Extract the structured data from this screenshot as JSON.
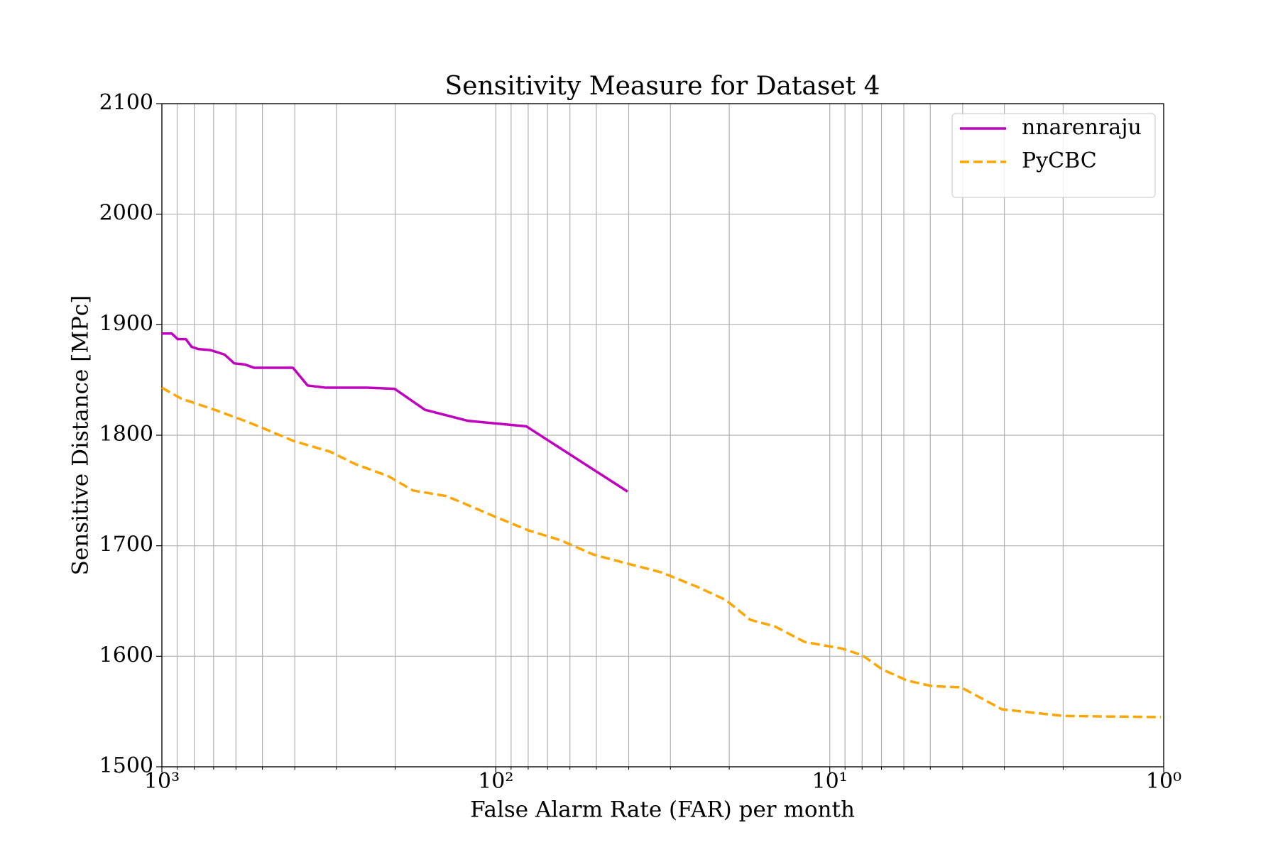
{
  "chart_data": {
    "type": "line",
    "title": "Sensitivity Measure for Dataset 4",
    "xlabel": "False Alarm Rate (FAR) per month",
    "ylabel": "Sensitive Distance [MPc]",
    "xscale": "log",
    "grid": true,
    "legend": "upper right",
    "xlim": [
      1000,
      1
    ],
    "xticks": [
      {
        "value": 1000,
        "label": "10³"
      },
      {
        "value": 100,
        "label": "10²"
      },
      {
        "value": 10,
        "label": "10¹"
      },
      {
        "value": 1,
        "label": "10⁰"
      }
    ],
    "xminorticks": [
      900,
      800,
      700,
      600,
      500,
      400,
      300,
      200,
      90,
      80,
      70,
      60,
      50,
      40,
      30,
      20,
      9,
      8,
      7,
      6,
      5,
      4,
      3,
      2
    ],
    "ylim": [
      1500,
      2100
    ],
    "yticks": [
      1500,
      1600,
      1700,
      1800,
      1900,
      2000,
      2100
    ],
    "series": [
      {
        "name": "nnarenraju",
        "color": "#bf00bf",
        "dash": "solid",
        "x": [
          1000,
          934,
          897,
          848,
          815,
          779,
          715,
          649,
          607,
          564,
          529,
          405,
          366,
          323,
          243,
          201,
          163,
          121,
          81,
          40.3
        ],
        "values": [
          1892,
          1892,
          1887,
          1887,
          1880,
          1878,
          1877,
          1873,
          1865,
          1864,
          1861,
          1861,
          1845,
          1843,
          1843,
          1842,
          1823,
          1813,
          1808,
          1749
        ]
      },
      {
        "name": "PyCBC",
        "color": "#ffa500",
        "dash": "dashed",
        "x": [
          1000,
          873,
          695,
          553,
          494,
          405,
          313,
          264,
          210,
          177,
          141,
          126,
          100,
          80,
          64,
          51,
          40.5,
          32,
          25,
          20.5,
          17.3,
          14.6,
          11.9,
          9.2,
          8.0,
          6.95,
          5.86,
          4.94,
          4.05,
          3.05,
          1.99,
          1.02
        ],
        "values": [
          1843,
          1833,
          1823,
          1812,
          1806,
          1795,
          1785,
          1774,
          1763,
          1750,
          1745,
          1739,
          1726,
          1714,
          1705,
          1692,
          1684,
          1676,
          1663,
          1651,
          1633,
          1627,
          1613,
          1607,
          1601,
          1588,
          1578,
          1573,
          1572,
          1552,
          1546,
          1545
        ]
      }
    ]
  }
}
